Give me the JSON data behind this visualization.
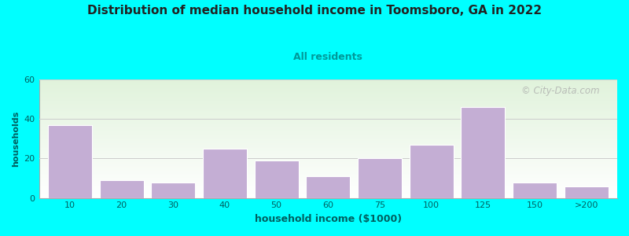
{
  "title": "Distribution of median household income in Toomsboro, GA in 2022",
  "subtitle": "All residents",
  "xlabel": "household income ($1000)",
  "ylabel": "households",
  "background_color": "#00FFFF",
  "bar_color": "#C4AED4",
  "bar_edgecolor": "#ffffff",
  "categories": [
    "10",
    "20",
    "30",
    "40",
    "50",
    "60",
    "75",
    "100",
    "125",
    "150",
    ">200"
  ],
  "values": [
    37,
    9,
    8,
    25,
    19,
    11,
    20,
    27,
    46,
    8,
    6
  ],
  "ylim": [
    0,
    60
  ],
  "yticks": [
    0,
    20,
    40,
    60
  ],
  "watermark": "© City-Data.com",
  "plot_bg_green": "#d8ecd0",
  "plot_bg_white": "#f8fff8",
  "title_color": "#222222",
  "subtitle_color": "#009999",
  "axis_label_color": "#006060",
  "tick_label_color": "#006060"
}
